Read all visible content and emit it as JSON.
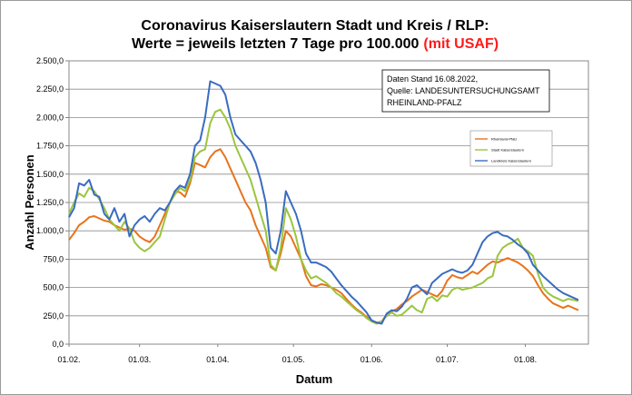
{
  "chart_data": {
    "type": "line",
    "title": "Coronavirus Kaiserslautern Stadt und Kreis / RLP:",
    "subtitle_main": "Werte = jeweils letzten 7 Tage pro 100.000",
    "subtitle_highlight": "(mit USAF)",
    "xlabel": "Datum",
    "ylabel": "Anzahl Personen",
    "ylim": [
      0,
      2500
    ],
    "yticks": [
      0,
      250,
      500,
      750,
      1000,
      1250,
      1500,
      1750,
      2000,
      2250,
      2500
    ],
    "ytick_labels": [
      "0,0",
      "250,0",
      "500,0",
      "750,0",
      "1.000,0",
      "1.250,0",
      "1.500,0",
      "1.750,0",
      "2.000,0",
      "2.250,0",
      "2.500,0"
    ],
    "xlim": [
      "01.02.",
      "26.08."
    ],
    "xtick_labels": [
      "01.02.",
      "01.03.",
      "01.04.",
      "01.05.",
      "01.06.",
      "01.07.",
      "01.08."
    ],
    "grid": true,
    "annotation": [
      "Daten Stand 16.08.2022,",
      "Quelle: LANDESUNTERSUCHUNGSAMT",
      "RHEINLAND-PFALZ"
    ],
    "legend_position": "right",
    "series": [
      {
        "name": "Rheinland-Pfalz",
        "color": "#e8731c",
        "x_start": "01.02.",
        "step_days": 2,
        "values": [
          920,
          980,
          1050,
          1080,
          1120,
          1130,
          1110,
          1090,
          1080,
          1050,
          1030,
          1010,
          1020,
          1000,
          950,
          920,
          900,
          950,
          1050,
          1150,
          1250,
          1350,
          1340,
          1300,
          1420,
          1600,
          1580,
          1560,
          1650,
          1700,
          1720,
          1650,
          1550,
          1450,
          1350,
          1250,
          1180,
          1050,
          950,
          850,
          680,
          650,
          800,
          1000,
          950,
          850,
          750,
          600,
          520,
          510,
          530,
          520,
          500,
          480,
          450,
          400,
          350,
          310,
          280,
          240,
          210,
          190,
          200,
          260,
          290,
          310,
          350,
          380,
          420,
          450,
          480,
          460,
          440,
          420,
          470,
          560,
          610,
          590,
          580,
          610,
          640,
          620,
          660,
          700,
          730,
          720,
          740,
          760,
          740,
          720,
          690,
          650,
          600,
          520,
          450,
          400,
          360,
          340,
          320,
          340,
          320,
          300
        ]
      },
      {
        "name": "Stadt Kaiserslautern",
        "color": "#9bc53d",
        "x_start": "01.02.",
        "step_days": 2,
        "values": [
          1150,
          1250,
          1330,
          1300,
          1380,
          1350,
          1280,
          1200,
          1100,
          1050,
          1000,
          1080,
          1020,
          900,
          850,
          820,
          850,
          900,
          950,
          1100,
          1250,
          1320,
          1380,
          1350,
          1450,
          1650,
          1700,
          1720,
          1950,
          2050,
          2070,
          2000,
          1900,
          1750,
          1650,
          1550,
          1450,
          1300,
          1150,
          1000,
          700,
          650,
          850,
          1200,
          1100,
          950,
          750,
          650,
          580,
          600,
          570,
          540,
          500,
          450,
          420,
          380,
          340,
          300,
          270,
          230,
          200,
          180,
          200,
          250,
          280,
          250,
          260,
          300,
          340,
          300,
          280,
          400,
          420,
          380,
          430,
          420,
          480,
          500,
          480,
          490,
          500,
          520,
          540,
          580,
          600,
          780,
          850,
          880,
          900,
          930,
          850,
          820,
          780,
          620,
          500,
          450,
          420,
          400,
          380,
          400,
          390,
          380
        ]
      },
      {
        "name": "Landkreis Kaiserslautern",
        "color": "#3a6cc0",
        "x_start": "01.02.",
        "step_days": 2,
        "values": [
          1120,
          1200,
          1420,
          1400,
          1450,
          1320,
          1300,
          1150,
          1100,
          1200,
          1080,
          1150,
          950,
          1050,
          1100,
          1130,
          1080,
          1150,
          1200,
          1180,
          1250,
          1350,
          1400,
          1380,
          1500,
          1750,
          1800,
          2000,
          2320,
          2300,
          2280,
          2200,
          2000,
          1850,
          1800,
          1750,
          1700,
          1600,
          1450,
          1250,
          850,
          800,
          1000,
          1350,
          1250,
          1150,
          1000,
          800,
          720,
          720,
          700,
          680,
          640,
          580,
          520,
          470,
          420,
          380,
          330,
          280,
          210,
          190,
          180,
          270,
          300,
          290,
          330,
          400,
          500,
          520,
          480,
          440,
          540,
          580,
          620,
          640,
          660,
          640,
          630,
          650,
          700,
          800,
          900,
          950,
          980,
          990,
          960,
          950,
          920,
          880,
          850,
          800,
          700,
          650,
          600,
          560,
          520,
          480,
          450,
          430,
          410,
          390
        ]
      }
    ]
  }
}
